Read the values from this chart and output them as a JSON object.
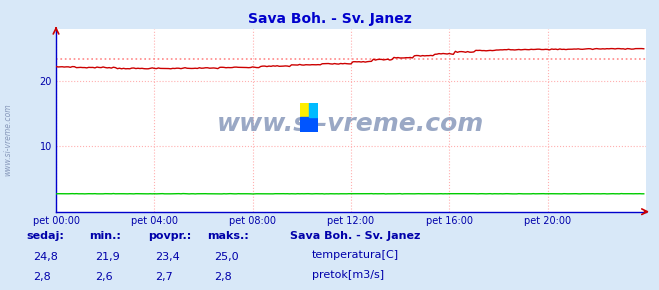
{
  "title": "Sava Boh. - Sv. Janez",
  "bg_color": "#d8e8f8",
  "plot_bg_color": "#ffffff",
  "grid_color": "#ffb0b0",
  "grid_style": ":",
  "x_labels": [
    "pet 00:00",
    "pet 04:00",
    "pet 08:00",
    "pet 12:00",
    "pet 16:00",
    "pet 20:00"
  ],
  "x_ticks_pos": [
    0,
    48,
    96,
    144,
    192,
    240
  ],
  "x_min": 0,
  "x_max": 288,
  "y_ticks": [
    10,
    20
  ],
  "y_min": 0,
  "y_max": 28,
  "temp_min": 21.9,
  "temp_max": 25.0,
  "temp_avg": 23.4,
  "temp_sedaj": 24.8,
  "pretok_min": 2.6,
  "pretok_max": 2.8,
  "pretok_avg": 2.7,
  "pretok_sedaj": 2.8,
  "temp_color": "#cc0000",
  "pretok_color": "#00cc00",
  "avg_line_color": "#ff8888",
  "spine_color": "#0000cc",
  "watermark_text": "www.si-vreme.com",
  "watermark_color": "#8899bb",
  "side_label": "www.si-vreme.com",
  "legend_title": "Sava Boh. - Sv. Janez",
  "label_color": "#0000aa",
  "title_color": "#0000cc",
  "footer_labels": [
    "sedaj:",
    "min.:",
    "povpr.:",
    "maks.:"
  ],
  "footer_temp": [
    "24,8",
    "21,9",
    "23,4",
    "25,0"
  ],
  "footer_pretok": [
    "2,8",
    "2,6",
    "2,7",
    "2,8"
  ],
  "legend_temp": "temperatura[C]",
  "legend_pretok": "pretok[m3/s]"
}
